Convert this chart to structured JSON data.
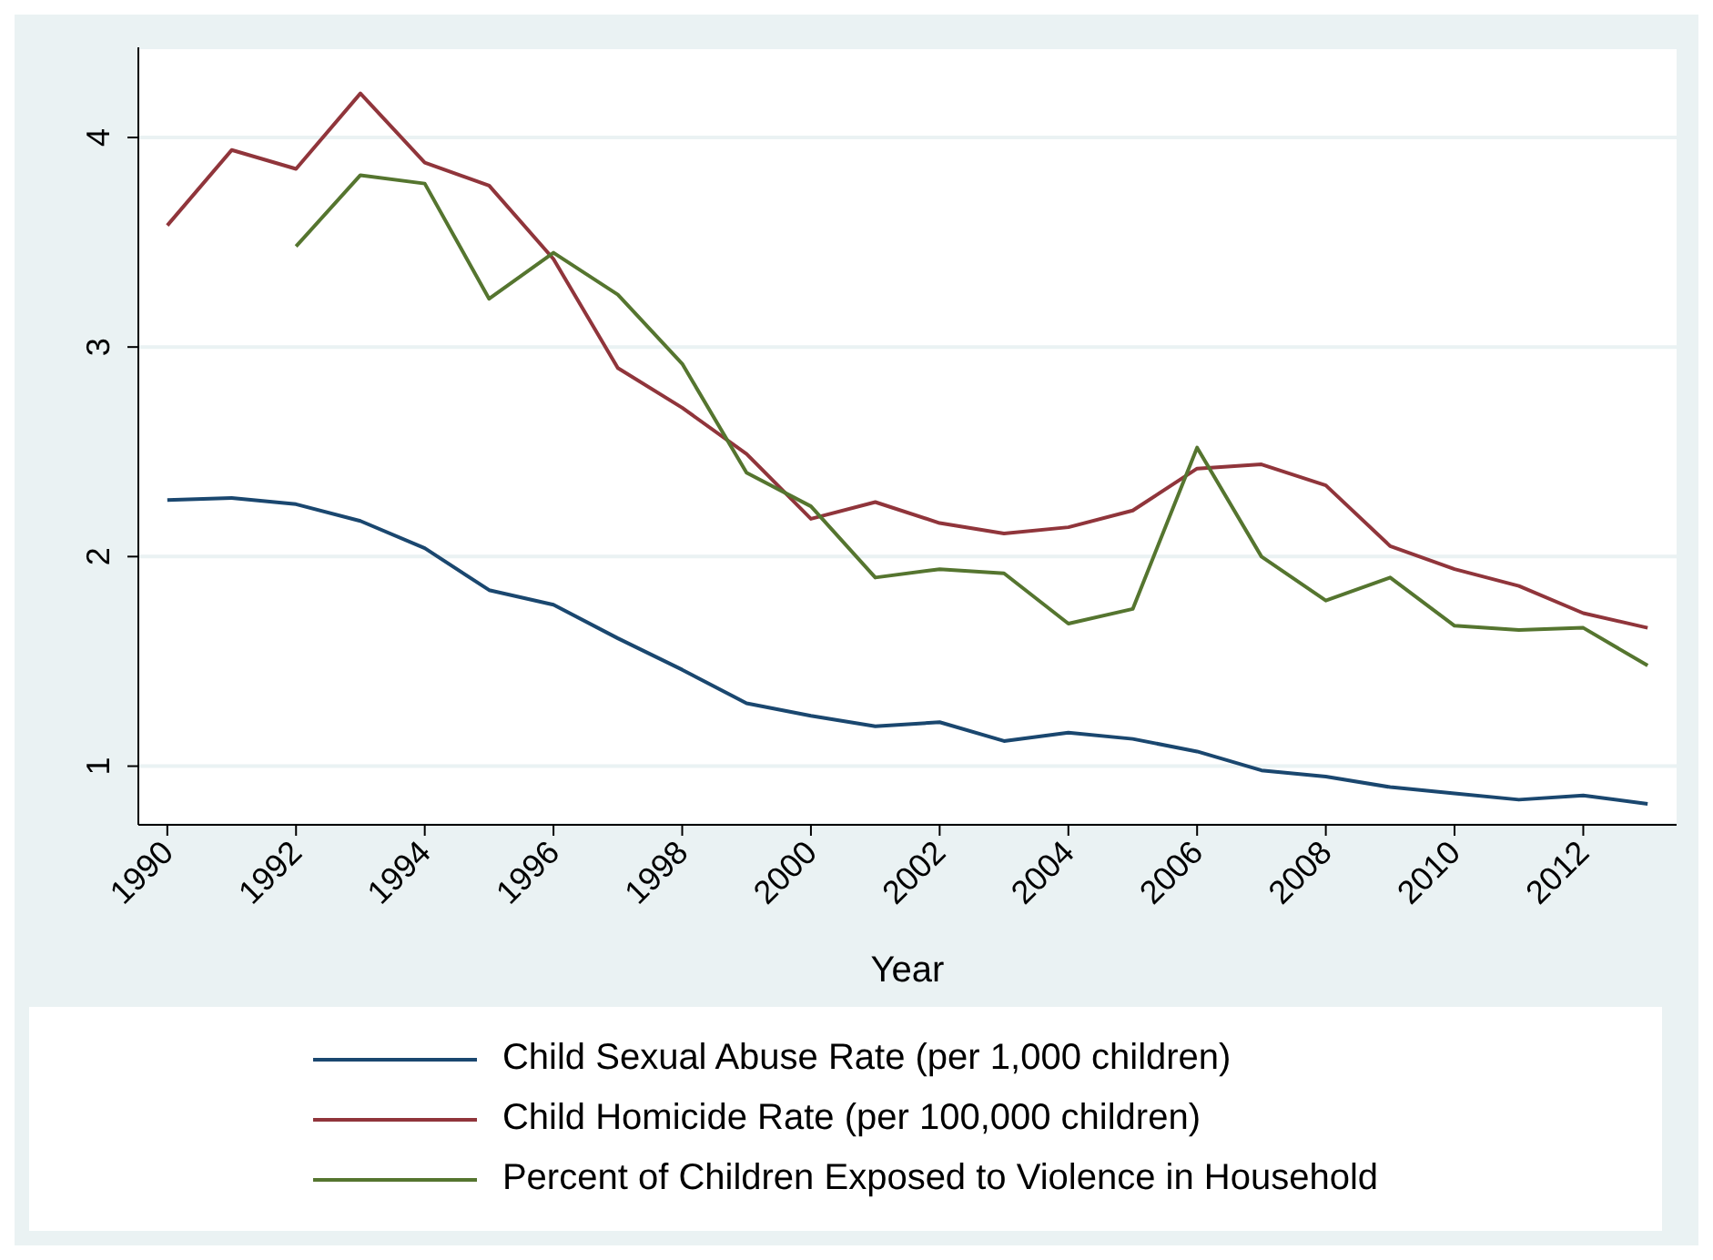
{
  "chart_data": {
    "type": "line",
    "xlabel": "Year",
    "x": [
      1990,
      1991,
      1992,
      1993,
      1994,
      1995,
      1996,
      1997,
      1998,
      1999,
      2000,
      2001,
      2002,
      2003,
      2004,
      2005,
      2006,
      2007,
      2008,
      2009,
      2010,
      2011,
      2012,
      2013
    ],
    "series": [
      {
        "name": "Child Sexual Abuse Rate (per 1,000 children)",
        "color": "#1a476f",
        "values": [
          2.27,
          2.28,
          2.25,
          2.17,
          2.04,
          1.84,
          1.77,
          1.61,
          1.46,
          1.3,
          1.24,
          1.19,
          1.21,
          1.12,
          1.16,
          1.13,
          1.07,
          0.98,
          0.95,
          0.9,
          0.87,
          0.84,
          0.86,
          0.82
        ]
      },
      {
        "name": "Child Homicide Rate (per 100,000 children)",
        "color": "#90353b",
        "values": [
          3.58,
          3.94,
          3.85,
          4.21,
          3.88,
          3.77,
          3.42,
          2.9,
          2.71,
          2.49,
          2.18,
          2.26,
          2.16,
          2.11,
          2.14,
          2.22,
          2.42,
          2.44,
          2.34,
          2.05,
          1.94,
          1.86,
          1.73,
          1.66
        ]
      },
      {
        "name": "Percent of Children Exposed to Violence in Household",
        "color": "#55752f",
        "values": [
          null,
          null,
          3.48,
          3.82,
          3.78,
          3.23,
          3.45,
          3.25,
          2.92,
          2.4,
          2.24,
          1.9,
          1.94,
          1.92,
          1.68,
          1.75,
          2.52,
          2.0,
          1.79,
          1.9,
          1.67,
          1.65,
          1.66,
          1.48
        ]
      }
    ],
    "xlim": [
      1989.55,
      2013.45
    ],
    "xticks": [
      1990,
      1992,
      1994,
      1996,
      1998,
      2000,
      2002,
      2004,
      2006,
      2008,
      2010,
      2012
    ],
    "ylim": [
      0.72,
      4.43
    ],
    "yticks": [
      1,
      2,
      3,
      4
    ],
    "grid": "y",
    "legend": "bottom",
    "marker": "none",
    "line_style": "solid"
  }
}
